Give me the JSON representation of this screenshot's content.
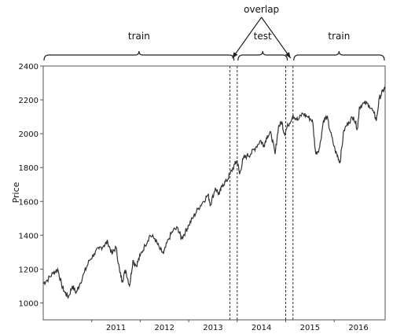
{
  "chart_data": {
    "type": "line",
    "ylabel": "Price",
    "xlabel": "",
    "xlim": [
      2010.0,
      2017.05
    ],
    "ylim": [
      900,
      2400
    ],
    "x_ticks": [
      2011,
      2012,
      2013,
      2014,
      2015,
      2016
    ],
    "y_ticks": [
      1000,
      1200,
      1400,
      1600,
      1800,
      2000,
      2200,
      2400
    ],
    "series": [
      {
        "points": [
          [
            2010.0,
            1115
          ],
          [
            2010.08,
            1135
          ],
          [
            2010.2,
            1175
          ],
          [
            2010.3,
            1200
          ],
          [
            2010.38,
            1105
          ],
          [
            2010.45,
            1060
          ],
          [
            2010.52,
            1035
          ],
          [
            2010.6,
            1100
          ],
          [
            2010.68,
            1060
          ],
          [
            2010.75,
            1110
          ],
          [
            2010.85,
            1180
          ],
          [
            2010.95,
            1250
          ],
          [
            2011.05,
            1290
          ],
          [
            2011.15,
            1320
          ],
          [
            2011.25,
            1340
          ],
          [
            2011.33,
            1360
          ],
          [
            2011.42,
            1290
          ],
          [
            2011.5,
            1330
          ],
          [
            2011.58,
            1180
          ],
          [
            2011.63,
            1130
          ],
          [
            2011.7,
            1195
          ],
          [
            2011.78,
            1100
          ],
          [
            2011.85,
            1250
          ],
          [
            2011.92,
            1220
          ],
          [
            2012.0,
            1280
          ],
          [
            2012.1,
            1340
          ],
          [
            2012.2,
            1400
          ],
          [
            2012.3,
            1380
          ],
          [
            2012.4,
            1320
          ],
          [
            2012.48,
            1290
          ],
          [
            2012.58,
            1375
          ],
          [
            2012.68,
            1430
          ],
          [
            2012.78,
            1440
          ],
          [
            2012.85,
            1380
          ],
          [
            2012.93,
            1420
          ],
          [
            2013.0,
            1460
          ],
          [
            2013.1,
            1510
          ],
          [
            2013.2,
            1560
          ],
          [
            2013.3,
            1600
          ],
          [
            2013.4,
            1640
          ],
          [
            2013.45,
            1580
          ],
          [
            2013.55,
            1680
          ],
          [
            2013.63,
            1640
          ],
          [
            2013.7,
            1700
          ],
          [
            2013.78,
            1720
          ],
          [
            2013.85,
            1760
          ],
          [
            2013.95,
            1820
          ],
          [
            2014.0,
            1840
          ],
          [
            2014.05,
            1760
          ],
          [
            2014.12,
            1850
          ],
          [
            2014.2,
            1870
          ],
          [
            2014.28,
            1880
          ],
          [
            2014.38,
            1920
          ],
          [
            2014.48,
            1960
          ],
          [
            2014.55,
            1930
          ],
          [
            2014.62,
            1990
          ],
          [
            2014.7,
            2000
          ],
          [
            2014.78,
            1880
          ],
          [
            2014.85,
            2040
          ],
          [
            2014.92,
            2070
          ],
          [
            2014.97,
            2000
          ],
          [
            2015.05,
            2050
          ],
          [
            2015.15,
            2110
          ],
          [
            2015.25,
            2080
          ],
          [
            2015.35,
            2120
          ],
          [
            2015.45,
            2100
          ],
          [
            2015.55,
            2080
          ],
          [
            2015.62,
            1880
          ],
          [
            2015.7,
            1920
          ],
          [
            2015.78,
            2080
          ],
          [
            2015.85,
            2100
          ],
          [
            2015.92,
            2010
          ],
          [
            2016.02,
            1900
          ],
          [
            2016.08,
            1860
          ],
          [
            2016.12,
            1830
          ],
          [
            2016.2,
            2020
          ],
          [
            2016.3,
            2070
          ],
          [
            2016.4,
            2100
          ],
          [
            2016.48,
            2030
          ],
          [
            2016.52,
            2160
          ],
          [
            2016.62,
            2180
          ],
          [
            2016.72,
            2170
          ],
          [
            2016.82,
            2120
          ],
          [
            2016.87,
            2080
          ],
          [
            2016.93,
            2210
          ],
          [
            2017.0,
            2250
          ],
          [
            2017.05,
            2270
          ]
        ]
      }
    ],
    "line_color": "#333333",
    "regions": [
      {
        "label": "train",
        "x_start": 2010.0,
        "x_end": 2013.95
      },
      {
        "label": "test",
        "x_start": 2014.0,
        "x_end": 2015.05
      },
      {
        "label": "train",
        "x_start": 2015.15,
        "x_end": 2017.05
      }
    ],
    "split_lines": [
      2013.85,
      2014.0,
      2015.0,
      2015.15
    ],
    "annotation": {
      "text": "overlap"
    }
  }
}
